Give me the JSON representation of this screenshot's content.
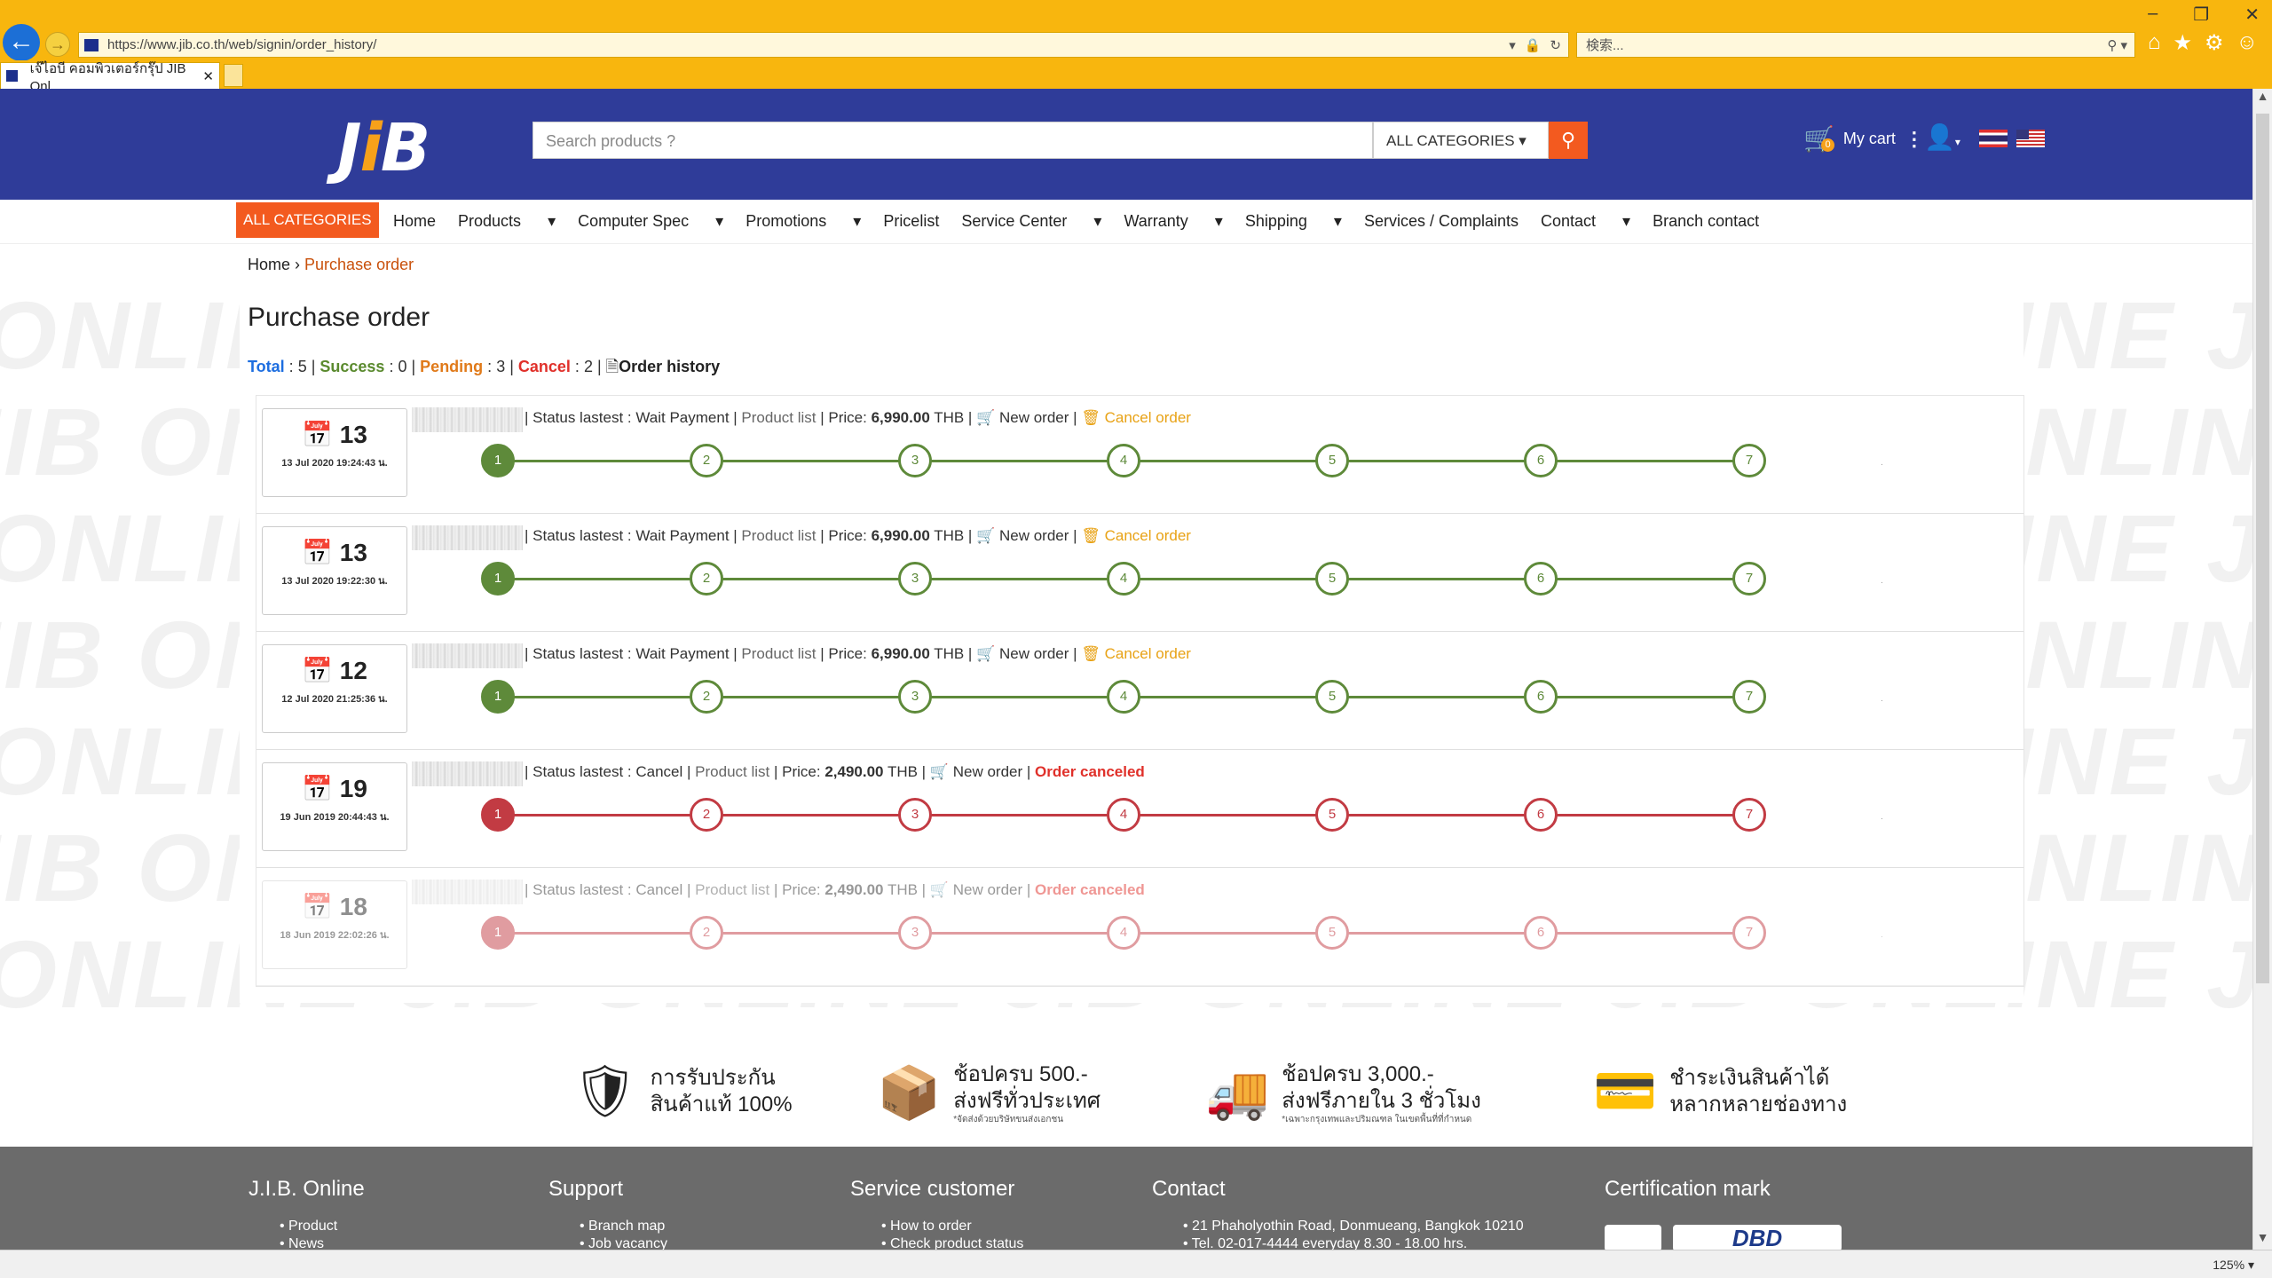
{
  "browser": {
    "url": "https://www.jib.co.th/web/signin/order_history/",
    "search_placeholder": "検索...",
    "tab_title": "เจ๊ไอบี คอมพิวเตอร์กรุ๊ป JIB Onl...",
    "zoom": "125%"
  },
  "header": {
    "logo_a": "J",
    "logo_i": "i",
    "logo_b": "B",
    "search_placeholder": "Search products ?",
    "category_select": "ALL CATEGORIES",
    "cart_label": "My cart",
    "cart_count": "0"
  },
  "nav": {
    "all_categories": "ALL CATEGORIES",
    "items": [
      "Home",
      "Products",
      "Computer Spec",
      "Promotions",
      "Pricelist",
      "Service Center",
      "Warranty",
      "Shipping",
      "Services / Complaints",
      "Contact",
      "Branch contact"
    ]
  },
  "breadcrumb": {
    "home": "Home",
    "current": "Purchase order"
  },
  "page_title": "Purchase order",
  "summary": {
    "total_label": "Total",
    "total": "5",
    "success_label": "Success",
    "success": "0",
    "pending_label": "Pending",
    "pending": "3",
    "cancel_label": "Cancel",
    "cancel": "2",
    "history_label": "Order history"
  },
  "orders": [
    {
      "day": "13",
      "datetime": "13 Jul 2020 19:24:43 น.",
      "status": "Status lastest : Wait Payment",
      "product_list": "Product list",
      "price_label": "Price:",
      "price": "6,990.00",
      "currency": "THB",
      "new_order": "New order",
      "action": "Cancel order",
      "step": 1
    },
    {
      "day": "13",
      "datetime": "13 Jul 2020 19:22:30 น.",
      "status": "Status lastest : Wait Payment",
      "product_list": "Product list",
      "price_label": "Price:",
      "price": "6,990.00",
      "currency": "THB",
      "new_order": "New order",
      "action": "Cancel order",
      "step": 1
    },
    {
      "day": "12",
      "datetime": "12 Jul 2020 21:25:36 น.",
      "status": "Status lastest : Wait Payment",
      "product_list": "Product list",
      "price_label": "Price:",
      "price": "6,990.00",
      "currency": "THB",
      "new_order": "New order",
      "action": "Cancel order",
      "step": 1
    },
    {
      "day": "19",
      "datetime": "19 Jun 2019 20:44:43 น.",
      "status": "Status lastest : Cancel",
      "product_list": "Product list",
      "price_label": "Price:",
      "price": "2,490.00",
      "currency": "THB",
      "new_order": "New order",
      "action": "Order canceled",
      "step": 1
    },
    {
      "day": "18",
      "datetime": "18 Jun 2019 22:02:26 น.",
      "status": "Status lastest : Cancel",
      "product_list": "Product list",
      "price_label": "Price:",
      "price": "2,490.00",
      "currency": "THB",
      "new_order": "New order",
      "action": "Order canceled",
      "step": 1
    }
  ],
  "steps": [
    "1",
    "2",
    "3",
    "4",
    "5",
    "6",
    "7"
  ],
  "features": [
    {
      "icon": "shield-check-icon",
      "line1": "การรับประกัน",
      "line2": "สินค้าแท้ 100%",
      "note": ""
    },
    {
      "icon": "box-icon",
      "line1": "ช้อปครบ 500.-",
      "line2": "ส่งฟรีทั่วประเทศ",
      "note": "*จัดส่งด้วยบริษัทขนส่งเอกชน"
    },
    {
      "icon": "fast-delivery-icon",
      "line1": "ช้อปครบ 3,000.-",
      "line2": "ส่งฟรีภายใน 3 ชั่วโมง",
      "note": "*เฉพาะกรุงเทพและปริมณฑล ในเขตพื้นที่ที่กำหนด"
    },
    {
      "icon": "payment-cards-icon",
      "line1": "ชำระเงินสินค้าได้",
      "line2": "หลากหลายช่องทาง",
      "note": ""
    }
  ],
  "footer": {
    "col1": {
      "title": "J.I.B. Online",
      "items": [
        "Product",
        "News"
      ]
    },
    "col2": {
      "title": "Support",
      "items": [
        "Branch map",
        "Job vacancy"
      ]
    },
    "col3": {
      "title": "Service customer",
      "items": [
        "How to order",
        "Check product status"
      ]
    },
    "col4": {
      "title": "Contact",
      "items": [
        "21 Phaholyothin Road, Donmueang, Bangkok 10210",
        "Tel. 02-017-4444 everyday 8.30 - 18.00 hrs."
      ]
    },
    "col5": {
      "title": "Certification mark"
    },
    "dbd": "DBD"
  },
  "colors": {
    "brand_blue": "#2f3c99",
    "accent_orange": "#f35a1f",
    "step_green": "#5e8a3a",
    "step_red": "#c23b43"
  }
}
